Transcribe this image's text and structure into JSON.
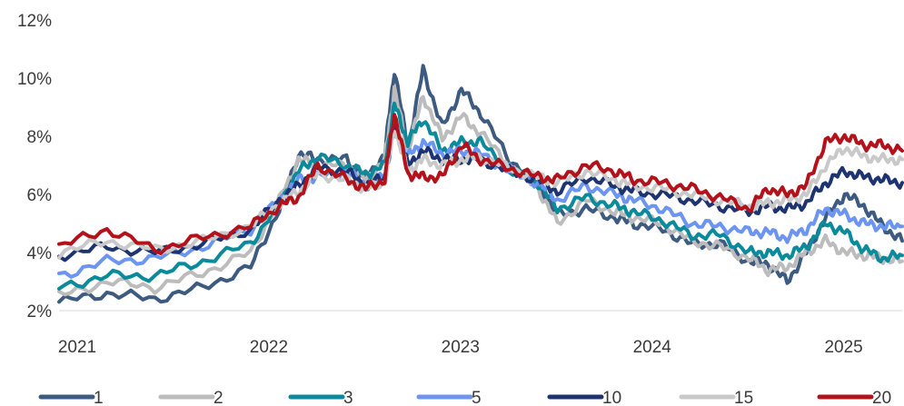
{
  "chart_data": {
    "type": "line",
    "title": "",
    "xlabel": "",
    "ylabel": "",
    "x_ticks": [
      "2021",
      "2022",
      "2023",
      "2024",
      "2025"
    ],
    "x_tick_values": [
      2021,
      2022,
      2023,
      2024,
      2025
    ],
    "xlim": [
      2021,
      2025.4
    ],
    "y_ticks": [
      "2%",
      "4%",
      "6%",
      "8%",
      "10%",
      "12%"
    ],
    "y_tick_values": [
      2,
      4,
      6,
      8,
      10,
      12
    ],
    "ylim": [
      2,
      12
    ],
    "grid": false,
    "legend_position": "bottom",
    "x": [
      2021.0,
      2021.25,
      2021.5,
      2021.75,
      2022.0,
      2022.15,
      2022.25,
      2022.35,
      2022.5,
      2022.6,
      2022.7,
      2022.75,
      2022.82,
      2022.9,
      2023.0,
      2023.1,
      2023.2,
      2023.35,
      2023.5,
      2023.6,
      2023.75,
      2023.9,
      2024.0,
      2024.15,
      2024.3,
      2024.45,
      2024.6,
      2024.7,
      2024.8,
      2024.9,
      2025.0,
      2025.1,
      2025.2,
      2025.3,
      2025.4
    ],
    "series": [
      {
        "name": "1",
        "color": "#3d5a80",
        "values": [
          2.3,
          2.6,
          2.4,
          2.8,
          3.5,
          5.5,
          7.4,
          7.2,
          7.2,
          6.5,
          7.4,
          10.3,
          7.6,
          10.3,
          8.3,
          9.6,
          8.8,
          7.2,
          6.4,
          5.3,
          5.5,
          5.2,
          5.0,
          4.8,
          4.3,
          4.3,
          3.7,
          3.6,
          3.0,
          4.0,
          5.2,
          6.0,
          5.6,
          4.9,
          4.4
        ]
      },
      {
        "name": "2",
        "color": "#bcbcbc",
        "values": [
          2.5,
          3.0,
          2.8,
          3.3,
          4.0,
          5.8,
          7.2,
          7.0,
          7.0,
          6.5,
          7.2,
          9.6,
          7.5,
          9.4,
          7.9,
          8.7,
          8.1,
          7.0,
          6.2,
          5.0,
          5.8,
          5.4,
          5.2,
          5.0,
          4.4,
          4.2,
          3.8,
          3.4,
          3.5,
          4.0,
          4.4,
          4.0,
          3.9,
          3.8,
          3.7
        ]
      },
      {
        "name": "3",
        "color": "#0a8a9b",
        "values": [
          2.8,
          3.2,
          3.2,
          3.7,
          4.3,
          5.7,
          6.8,
          7.3,
          7.0,
          6.7,
          7.0,
          9.1,
          7.8,
          8.6,
          7.5,
          7.8,
          7.8,
          6.8,
          6.4,
          5.5,
          5.9,
          5.6,
          5.4,
          5.1,
          4.6,
          4.6,
          4.0,
          4.0,
          3.9,
          4.2,
          5.0,
          4.7,
          4.1,
          3.8,
          3.9
        ]
      },
      {
        "name": "5",
        "color": "#6b95f0",
        "values": [
          3.2,
          3.7,
          3.8,
          4.2,
          4.8,
          5.8,
          6.5,
          6.6,
          6.8,
          6.3,
          6.6,
          8.2,
          7.3,
          7.8,
          7.4,
          7.5,
          7.4,
          6.8,
          6.4,
          5.8,
          6.3,
          6.0,
          5.8,
          5.5,
          5.0,
          4.9,
          4.7,
          4.7,
          4.5,
          4.8,
          5.5,
          5.3,
          5.0,
          4.9,
          4.9
        ]
      },
      {
        "name": "10",
        "color": "#1e3470",
        "values": [
          3.9,
          4.2,
          4.0,
          4.3,
          4.8,
          5.8,
          6.3,
          6.9,
          6.8,
          6.3,
          6.6,
          8.6,
          7.0,
          7.5,
          7.2,
          7.2,
          7.2,
          6.8,
          6.5,
          6.1,
          6.6,
          6.3,
          6.1,
          6.0,
          5.8,
          5.6,
          5.4,
          5.6,
          5.5,
          5.7,
          6.4,
          6.8,
          6.6,
          6.5,
          6.4
        ]
      },
      {
        "name": "15",
        "color": "#c9c9c9",
        "values": [
          4.0,
          4.4,
          4.1,
          4.4,
          4.9,
          5.7,
          6.1,
          6.7,
          6.5,
          6.2,
          6.4,
          8.3,
          6.8,
          7.2,
          7.0,
          7.2,
          7.3,
          6.9,
          6.6,
          6.4,
          6.8,
          6.5,
          6.3,
          6.2,
          6.0,
          5.8,
          5.6,
          5.7,
          5.8,
          6.0,
          7.0,
          7.6,
          7.3,
          7.2,
          7.2
        ]
      },
      {
        "name": "20",
        "color": "#b4121b",
        "values": [
          4.2,
          4.8,
          4.1,
          4.5,
          4.9,
          5.6,
          5.9,
          7.0,
          6.5,
          6.2,
          6.5,
          8.8,
          6.7,
          6.6,
          6.6,
          7.7,
          7.2,
          6.9,
          6.6,
          6.5,
          7.0,
          6.8,
          6.5,
          6.4,
          6.2,
          5.9,
          5.5,
          6.2,
          6.0,
          6.3,
          7.8,
          8.0,
          7.7,
          7.7,
          7.5
        ]
      }
    ]
  }
}
